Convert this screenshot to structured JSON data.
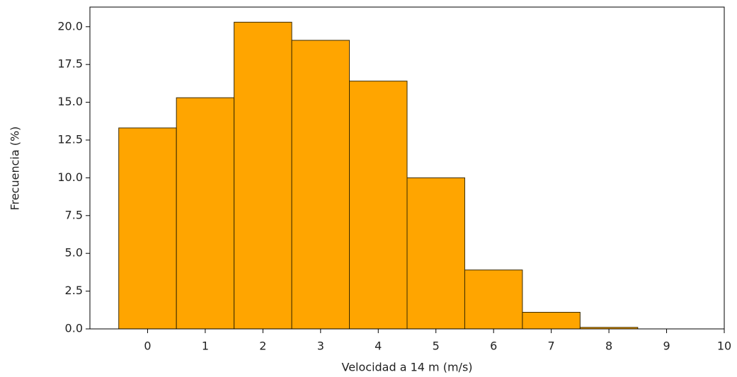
{
  "chart_data": {
    "type": "histogram",
    "x_label": "Velocidad a 14 m (m/s)",
    "y_label": "Frecuencia (%)",
    "bins": [
      -0.5,
      0.5,
      1.5,
      2.5,
      3.5,
      4.5,
      5.5,
      6.5,
      7.5,
      8.5
    ],
    "values": [
      13.3,
      15.3,
      20.3,
      19.1,
      16.4,
      10.0,
      3.9,
      1.1,
      0.1
    ],
    "color": "#ffa500",
    "edgecolor": "#3a2a00",
    "xlim": [
      -1,
      10
    ],
    "xticks": [
      0,
      1,
      2,
      3,
      4,
      5,
      6,
      7,
      8,
      9,
      10
    ],
    "ylim": [
      0,
      21.3
    ],
    "yticks": [
      {
        "value": 0,
        "label": "0.0"
      },
      2.5,
      {
        "value": 5,
        "label": "5.0"
      },
      7.5,
      {
        "value": 10,
        "label": "10.0"
      },
      12.5,
      {
        "value": 15,
        "label": "15.0"
      },
      17.5,
      {
        "value": 20,
        "label": "20.0"
      }
    ],
    "grid": false
  }
}
